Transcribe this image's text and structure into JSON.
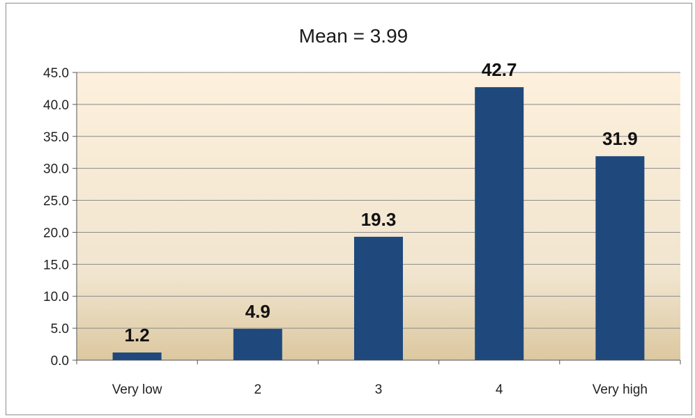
{
  "chart_data": {
    "type": "bar",
    "title": "Mean = 3.99",
    "xlabel": "",
    "ylabel": "",
    "categories": [
      "Very low",
      "2",
      "3",
      "4",
      "Very high"
    ],
    "values": [
      1.2,
      4.9,
      19.3,
      42.7,
      31.9
    ],
    "value_labels": [
      "1.2",
      "4.9",
      "19.3",
      "42.7",
      "31.9"
    ],
    "ylim": [
      0,
      45
    ],
    "y_ticks": [
      "0.0",
      "5.0",
      "10.0",
      "15.0",
      "20.0",
      "25.0",
      "30.0",
      "35.0",
      "40.0",
      "45.0"
    ],
    "grid": true,
    "legend": "none",
    "colors": {
      "bar": "#1f497d",
      "plot_bg_top": "#fdf0dc",
      "plot_bg_bottom": "#dcc8a0",
      "grid": "#8a8a8a"
    }
  }
}
